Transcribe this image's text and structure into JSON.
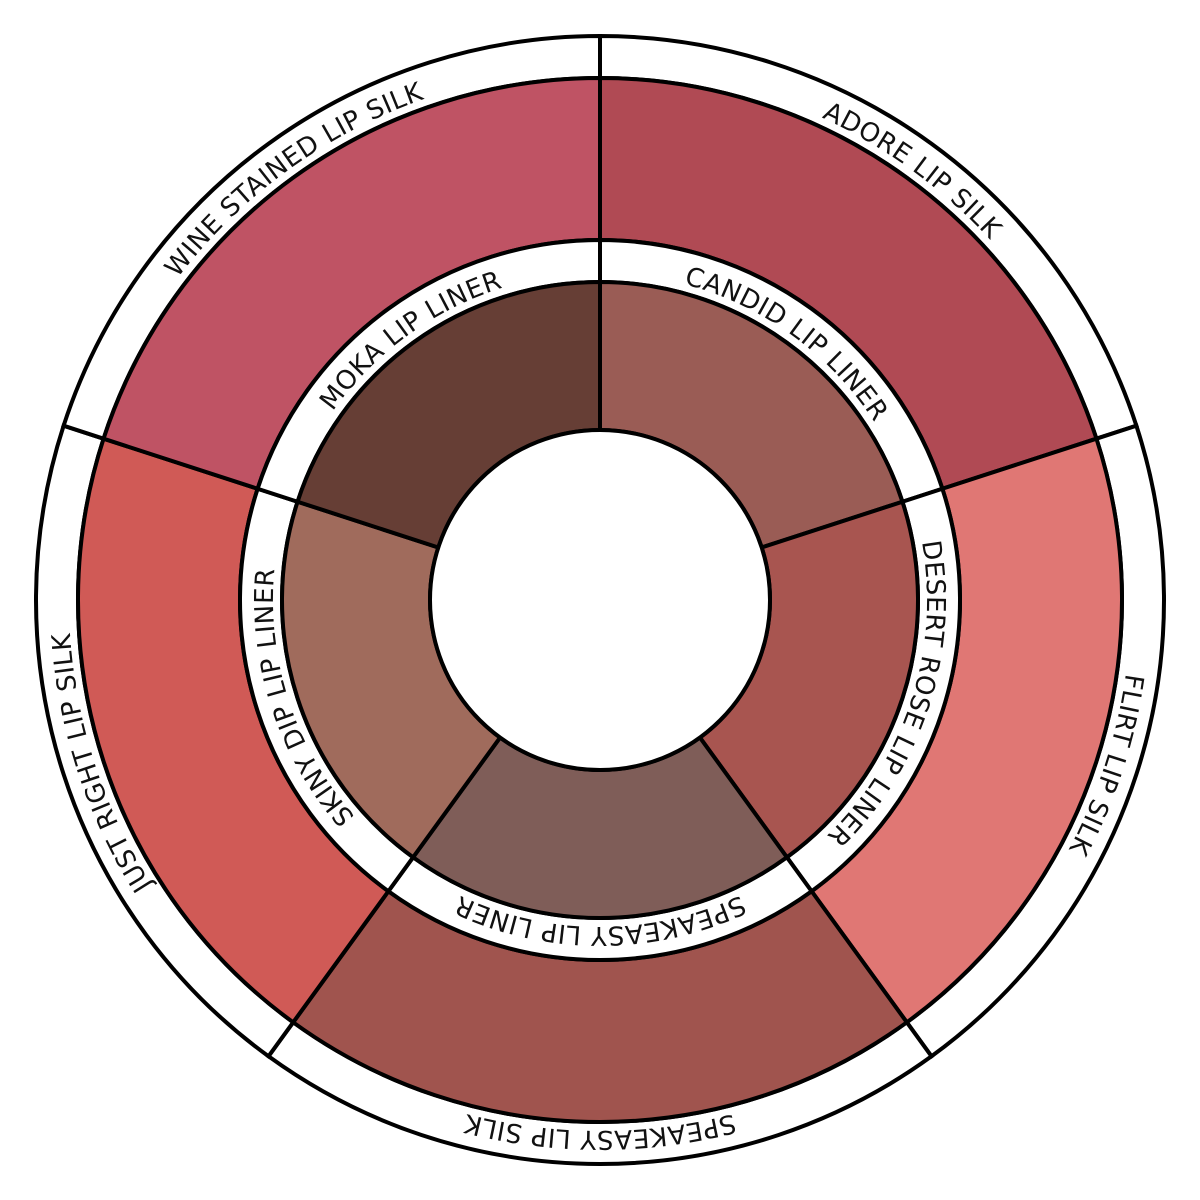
{
  "outer_ring": {
    "segments": [
      {
        "label": "ADORE LIP SILK",
        "color": "#b04a54"
      },
      {
        "label": "FLIRT LIP SILK",
        "color": "#e07774"
      },
      {
        "label": "SPEAKEASY LIP SILK",
        "color": "#a0544e"
      },
      {
        "label": "JUST RIGHT LIP SILK",
        "color": "#d05a56"
      },
      {
        "label": "WINE STAINED LIP SILK",
        "color": "#bf5364"
      }
    ]
  },
  "inner_ring": {
    "segments": [
      {
        "label": "CANDID LIP LINER",
        "color": "#9a5c55"
      },
      {
        "label": "DESERT ROSE LIP LINER",
        "color": "#a85550"
      },
      {
        "label": "SPEAKEASY LIP LINER",
        "color": "#7f5d58"
      },
      {
        "label": "SKINY DIP LIP LINER",
        "color": "#a06b5c"
      },
      {
        "label": "MOKA LIP LINER",
        "color": "#663e35"
      }
    ]
  }
}
